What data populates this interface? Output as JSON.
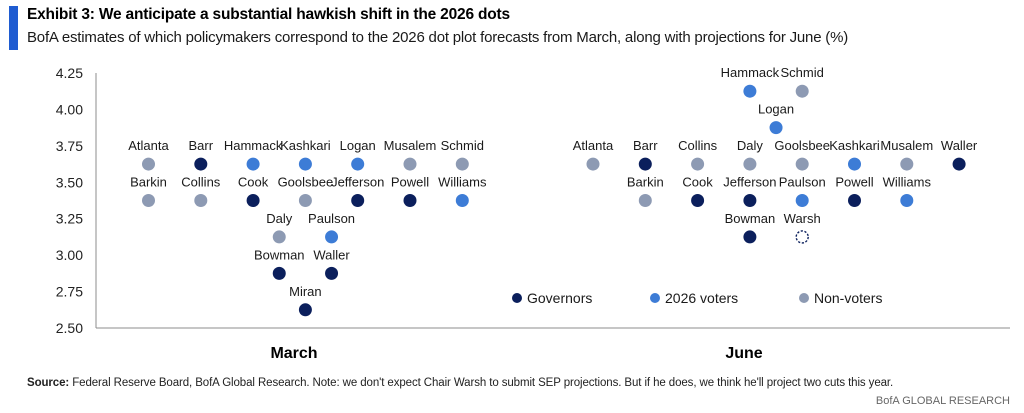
{
  "header": {
    "title": "Exhibit 3: We anticipate a substantial hawkish shift in the 2026 dots",
    "subtitle": "BofA estimates of which policymakers correspond to the 2026 dot plot forecasts from March, along with projections for June (%)"
  },
  "footnote": {
    "source_label": "Source:",
    "text": "Federal Reserve Board, BofA Global Research. Note: we don't expect Chair Warsh to submit SEP projections. But if he does, we think he'll project two cuts this year."
  },
  "brand": "BofA GLOBAL RESEARCH",
  "colors": {
    "governors": "#0b1f5c",
    "voters_2026": "#3d7cd6",
    "non_voters": "#8d9ab3",
    "accent": "#1f5cd1"
  },
  "chart_data": {
    "type": "scatter",
    "ylim": [
      2.5,
      4.25
    ],
    "yticks": [
      "4.25",
      "4.00",
      "3.75",
      "3.50",
      "3.25",
      "3.00",
      "2.75",
      "2.50"
    ],
    "yvalues": [
      4.25,
      4.0,
      3.75,
      3.5,
      3.25,
      3.0,
      2.75,
      2.5
    ],
    "categories": [
      "March",
      "June"
    ],
    "legend": {
      "placement": "bottom-right",
      "items": [
        {
          "key": "governors",
          "label": "Governors"
        },
        {
          "key": "voters_2026",
          "label": "2026 voters"
        },
        {
          "key": "non_voters",
          "label": "Non-voters"
        }
      ]
    },
    "points": [
      {
        "panel": "March",
        "col": 0,
        "name": "Atlanta",
        "value": 3.625,
        "group": "non_voters"
      },
      {
        "panel": "March",
        "col": 0,
        "name": "Barkin",
        "value": 3.375,
        "group": "non_voters"
      },
      {
        "panel": "March",
        "col": 1,
        "name": "Barr",
        "value": 3.625,
        "group": "governors"
      },
      {
        "panel": "March",
        "col": 1,
        "name": "Collins",
        "value": 3.375,
        "group": "non_voters"
      },
      {
        "panel": "March",
        "col": 2,
        "name": "Hammack",
        "value": 3.625,
        "group": "voters_2026"
      },
      {
        "panel": "March",
        "col": 2,
        "name": "Cook",
        "value": 3.375,
        "group": "governors"
      },
      {
        "panel": "March",
        "col": 2.5,
        "name": "Daly",
        "value": 3.125,
        "group": "non_voters"
      },
      {
        "panel": "March",
        "col": 2.5,
        "name": "Bowman",
        "value": 2.875,
        "group": "governors"
      },
      {
        "panel": "March",
        "col": 3,
        "name": "Miran",
        "value": 2.625,
        "group": "governors"
      },
      {
        "panel": "March",
        "col": 3,
        "name": "Kashkari",
        "value": 3.625,
        "group": "voters_2026"
      },
      {
        "panel": "March",
        "col": 3,
        "name": "Goolsbee",
        "value": 3.375,
        "group": "non_voters"
      },
      {
        "panel": "March",
        "col": 3.5,
        "name": "Paulson",
        "value": 3.125,
        "group": "voters_2026"
      },
      {
        "panel": "March",
        "col": 3.5,
        "name": "Waller",
        "value": 2.875,
        "group": "governors"
      },
      {
        "panel": "March",
        "col": 4,
        "name": "Logan",
        "value": 3.625,
        "group": "voters_2026"
      },
      {
        "panel": "March",
        "col": 4,
        "name": "Jefferson",
        "value": 3.375,
        "group": "governors"
      },
      {
        "panel": "March",
        "col": 5,
        "name": "Musalem",
        "value": 3.625,
        "group": "non_voters"
      },
      {
        "panel": "March",
        "col": 5,
        "name": "Powell",
        "value": 3.375,
        "group": "governors"
      },
      {
        "panel": "March",
        "col": 6,
        "name": "Schmid",
        "value": 3.625,
        "group": "non_voters"
      },
      {
        "panel": "March",
        "col": 6,
        "name": "Williams",
        "value": 3.375,
        "group": "voters_2026"
      },
      {
        "panel": "June",
        "col": 0,
        "name": "Atlanta",
        "value": 3.625,
        "group": "non_voters"
      },
      {
        "panel": "June",
        "col": 1,
        "name": "Barr",
        "value": 3.625,
        "group": "governors"
      },
      {
        "panel": "June",
        "col": 1,
        "name": "Barkin",
        "value": 3.375,
        "group": "non_voters"
      },
      {
        "panel": "June",
        "col": 2,
        "name": "Collins",
        "value": 3.625,
        "group": "non_voters"
      },
      {
        "panel": "June",
        "col": 2,
        "name": "Cook",
        "value": 3.375,
        "group": "governors"
      },
      {
        "panel": "June",
        "col": 3,
        "name": "Hammack",
        "value": 4.125,
        "group": "voters_2026"
      },
      {
        "panel": "June",
        "col": 3,
        "name": "Daly",
        "value": 3.625,
        "group": "non_voters"
      },
      {
        "panel": "June",
        "col": 3,
        "name": "Jefferson",
        "value": 3.375,
        "group": "governors"
      },
      {
        "panel": "June",
        "col": 3,
        "name": "Bowman",
        "value": 3.125,
        "group": "governors"
      },
      {
        "panel": "June",
        "col": 3.5,
        "name": "Logan",
        "value": 3.875,
        "group": "voters_2026"
      },
      {
        "panel": "June",
        "col": 4,
        "name": "Schmid",
        "value": 4.125,
        "group": "non_voters"
      },
      {
        "panel": "June",
        "col": 4,
        "name": "Goolsbee",
        "value": 3.625,
        "group": "non_voters"
      },
      {
        "panel": "June",
        "col": 4,
        "name": "Paulson",
        "value": 3.375,
        "group": "voters_2026"
      },
      {
        "panel": "June",
        "col": 4,
        "name": "Warsh",
        "value": 3.125,
        "group": "governors",
        "hollow": true
      },
      {
        "panel": "June",
        "col": 5,
        "name": "Kashkari",
        "value": 3.625,
        "group": "voters_2026"
      },
      {
        "panel": "June",
        "col": 5,
        "name": "Powell",
        "value": 3.375,
        "group": "governors"
      },
      {
        "panel": "June",
        "col": 6,
        "name": "Musalem",
        "value": 3.625,
        "group": "non_voters"
      },
      {
        "panel": "June",
        "col": 6,
        "name": "Williams",
        "value": 3.375,
        "group": "voters_2026"
      },
      {
        "panel": "June",
        "col": 7,
        "name": "Waller",
        "value": 3.625,
        "group": "governors"
      }
    ]
  }
}
